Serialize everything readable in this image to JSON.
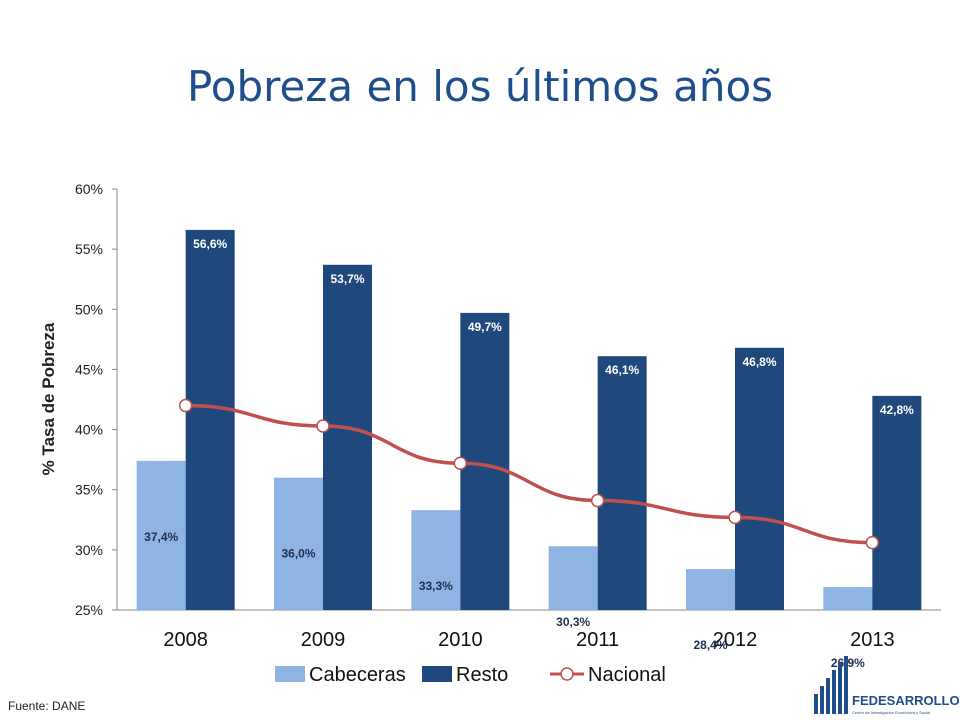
{
  "title": "Pobreza en los últimos años",
  "source": "Fuente: DANE",
  "logo": {
    "name": "FEDESARROLLO",
    "subtitle": "Centro de Investigación Económica y Social"
  },
  "colors": {
    "cabeceras": "#8eb4e3",
    "resto": "#1f497d",
    "nacional": "#c0504d",
    "title": "#1f4e8c"
  },
  "chart_data": {
    "type": "bar",
    "title": "",
    "xlabel": "",
    "ylabel": "% Tasa de Pobreza",
    "ylim": [
      25,
      60
    ],
    "yticks": [
      "25%",
      "30%",
      "35%",
      "40%",
      "45%",
      "50%",
      "55%",
      "60%"
    ],
    "categories": [
      "2008",
      "2009",
      "2010",
      "2011",
      "2012",
      "2013"
    ],
    "series": [
      {
        "name": "Cabeceras",
        "kind": "bar",
        "values": [
          37.4,
          36.0,
          33.3,
          30.3,
          28.4,
          26.9
        ],
        "labels": [
          "37,4%",
          "36,0%",
          "33,3%",
          "30,3%",
          "28,4%",
          "26,9%"
        ]
      },
      {
        "name": "Resto",
        "kind": "bar",
        "values": [
          56.6,
          53.7,
          49.7,
          46.1,
          46.8,
          42.8
        ],
        "labels": [
          "56,6%",
          "53,7%",
          "49,7%",
          "46,1%",
          "46,8%",
          "42,8%"
        ]
      },
      {
        "name": "Nacional",
        "kind": "line",
        "values": [
          42.0,
          40.3,
          37.2,
          34.1,
          32.7,
          30.6
        ]
      }
    ],
    "grid": false,
    "legend": "bottom"
  }
}
